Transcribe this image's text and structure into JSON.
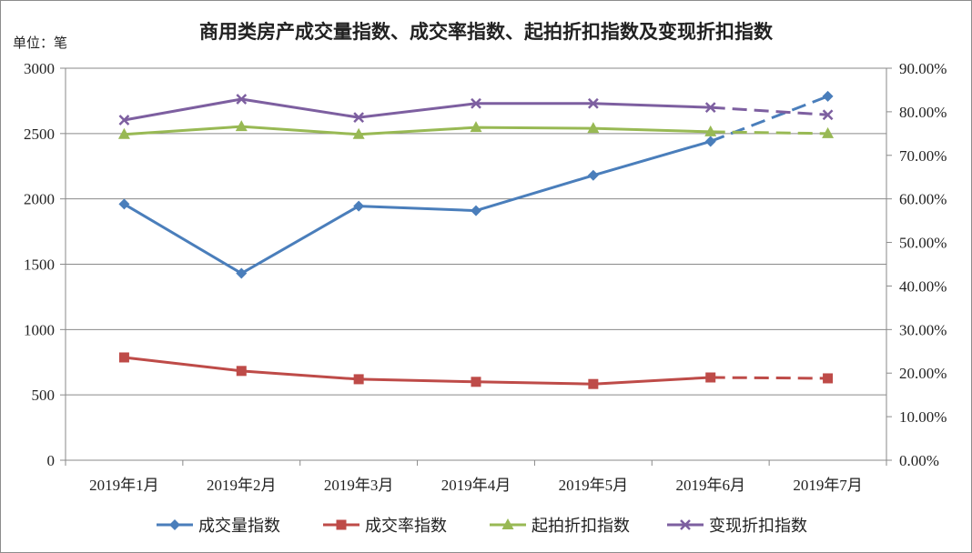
{
  "chart_data": {
    "type": "line",
    "title": "商用类房产成交量指数、成交率指数、起拍折扣指数及变现折扣指数",
    "ylabel": "单位：笔",
    "categories": [
      "2019年1月",
      "2019年2月",
      "2019年3月",
      "2019年4月",
      "2019年5月",
      "2019年6月",
      "2019年7月"
    ],
    "y_left": {
      "range": [
        0,
        3000
      ],
      "ticks": [
        0,
        500,
        1000,
        1500,
        2000,
        2500,
        3000
      ],
      "tick_labels": [
        "0",
        "500",
        "1000",
        "1500",
        "2000",
        "2500",
        "3000"
      ]
    },
    "y_right": {
      "range": [
        0,
        90
      ],
      "ticks": [
        0,
        10,
        20,
        30,
        40,
        50,
        60,
        70,
        80,
        90
      ],
      "tick_labels": [
        "0.00%",
        "10.00%",
        "20.00%",
        "30.00%",
        "40.00%",
        "50.00%",
        "60.00%",
        "70.00%",
        "80.00%",
        "90.00%"
      ]
    },
    "grid": true,
    "legend": "bottom",
    "last_segment_dashed": true,
    "series": [
      {
        "name": "成交量指数",
        "axis": "left",
        "marker": "diamond",
        "color": "#4a7ebb",
        "values": [
          1960,
          1430,
          1945,
          1910,
          2180,
          2440,
          2785
        ]
      },
      {
        "name": "成交率指数",
        "axis": "right",
        "marker": "square",
        "color": "#be4b48",
        "values": [
          23.6,
          20.5,
          18.6,
          18.0,
          17.5,
          19.0,
          18.8
        ]
      },
      {
        "name": "起拍折扣指数",
        "axis": "right",
        "marker": "triangle",
        "color": "#98b954",
        "values": [
          74.8,
          76.6,
          74.8,
          76.4,
          76.2,
          75.4,
          75.0
        ]
      },
      {
        "name": "变现折扣指数",
        "axis": "right",
        "marker": "x",
        "color": "#7d5fa0",
        "values": [
          78.1,
          82.9,
          78.7,
          81.9,
          81.9,
          81.0,
          79.3
        ]
      }
    ]
  }
}
